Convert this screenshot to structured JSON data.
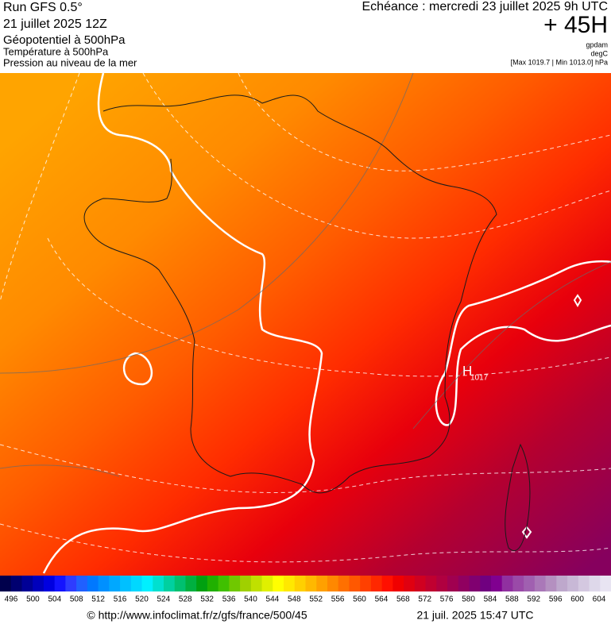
{
  "header": {
    "left": [
      "Run GFS 0.5°",
      "21 juillet 2025 12Z",
      "Géopotentiel à 500hPa",
      "Température à 500hPa",
      "Pression au niveau de la mer"
    ],
    "right": [
      "Echéance : mercredi 23 juillet 2025 9h UTC",
      "+ 45H",
      "gpdam",
      "degC",
      "[Max 1019.7 | Min 1013.0] hPa"
    ]
  },
  "map": {
    "high_symbol": "H",
    "high_value": "1017"
  },
  "colorbar": {
    "labels": [
      496,
      500,
      504,
      508,
      512,
      516,
      520,
      524,
      528,
      532,
      536,
      540,
      544,
      548,
      552,
      556,
      560,
      564,
      568,
      572,
      576,
      580,
      584,
      588,
      592,
      596,
      600,
      604
    ],
    "colors": [
      "#00004c",
      "#000070",
      "#000096",
      "#0000bc",
      "#0000e0",
      "#1414ff",
      "#2e3cff",
      "#2060ff",
      "#0078ff",
      "#0090ff",
      "#00a8ff",
      "#00c0ff",
      "#00d8ff",
      "#00f0ff",
      "#00e0d0",
      "#00d0a0",
      "#00c070",
      "#00b040",
      "#00a010",
      "#20b000",
      "#40c000",
      "#70c800",
      "#a0d000",
      "#c0e000",
      "#e0f000",
      "#ffff00",
      "#ffe800",
      "#ffd000",
      "#ffb800",
      "#ffa000",
      "#ff8800",
      "#ff7000",
      "#ff5800",
      "#ff4000",
      "#ff2800",
      "#ff1000",
      "#f00000",
      "#e00010",
      "#d00020",
      "#c00030",
      "#b00040",
      "#a00050",
      "#900060",
      "#800070",
      "#700080",
      "#800090",
      "#9030a0",
      "#9a4aa8",
      "#a060b0",
      "#aa78b8",
      "#b490c0",
      "#bea8cc",
      "#c8b8d6",
      "#d4c8e0",
      "#ded8ea",
      "#e8e4f2"
    ]
  },
  "footer": {
    "source": "© http://www.infoclimat.fr/z/gfs/france/500/45",
    "date": "21 juil. 2025 15:47 UTC"
  }
}
